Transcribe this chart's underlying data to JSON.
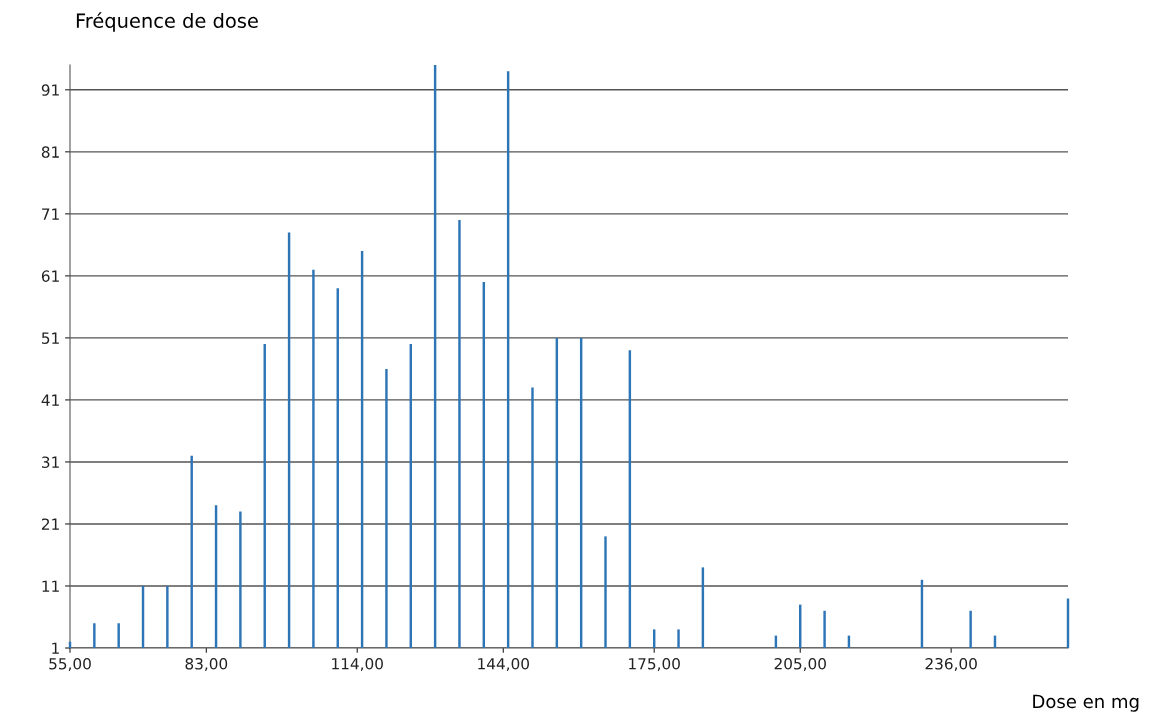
{
  "chart_data": {
    "type": "bar",
    "ylabel": "Fréquence de dose",
    "xlabel": "Dose en mg",
    "x": [
      55,
      60,
      65,
      70,
      75,
      80,
      85,
      90,
      95,
      100,
      105,
      110,
      115,
      120,
      125,
      130,
      135,
      140,
      145,
      150,
      155,
      160,
      165,
      170,
      175,
      180,
      185,
      200,
      205,
      210,
      215,
      230,
      240,
      245,
      260
    ],
    "values": [
      2,
      5,
      5,
      11,
      11,
      32,
      24,
      23,
      50,
      68,
      62,
      59,
      65,
      46,
      50,
      95,
      70,
      60,
      94,
      43,
      51,
      51,
      19,
      49,
      4,
      4,
      14,
      3,
      8,
      7,
      3,
      12,
      7,
      3,
      9
    ],
    "color": "#2e75b6",
    "xlim": [
      55,
      260
    ],
    "xticks": [
      {
        "value": 55,
        "label": "55,00"
      },
      {
        "value": 83,
        "label": "83,00"
      },
      {
        "value": 114,
        "label": "114,00"
      },
      {
        "value": 144,
        "label": "144,00"
      },
      {
        "value": 175,
        "label": "175,00"
      },
      {
        "value": 205,
        "label": "205,00"
      },
      {
        "value": 236,
        "label": "236,00"
      }
    ],
    "ylim": [
      1,
      95
    ],
    "yticks": [
      1,
      11,
      21,
      31,
      41,
      51,
      61,
      71,
      81,
      91
    ],
    "grid": "y",
    "legend": false
  }
}
